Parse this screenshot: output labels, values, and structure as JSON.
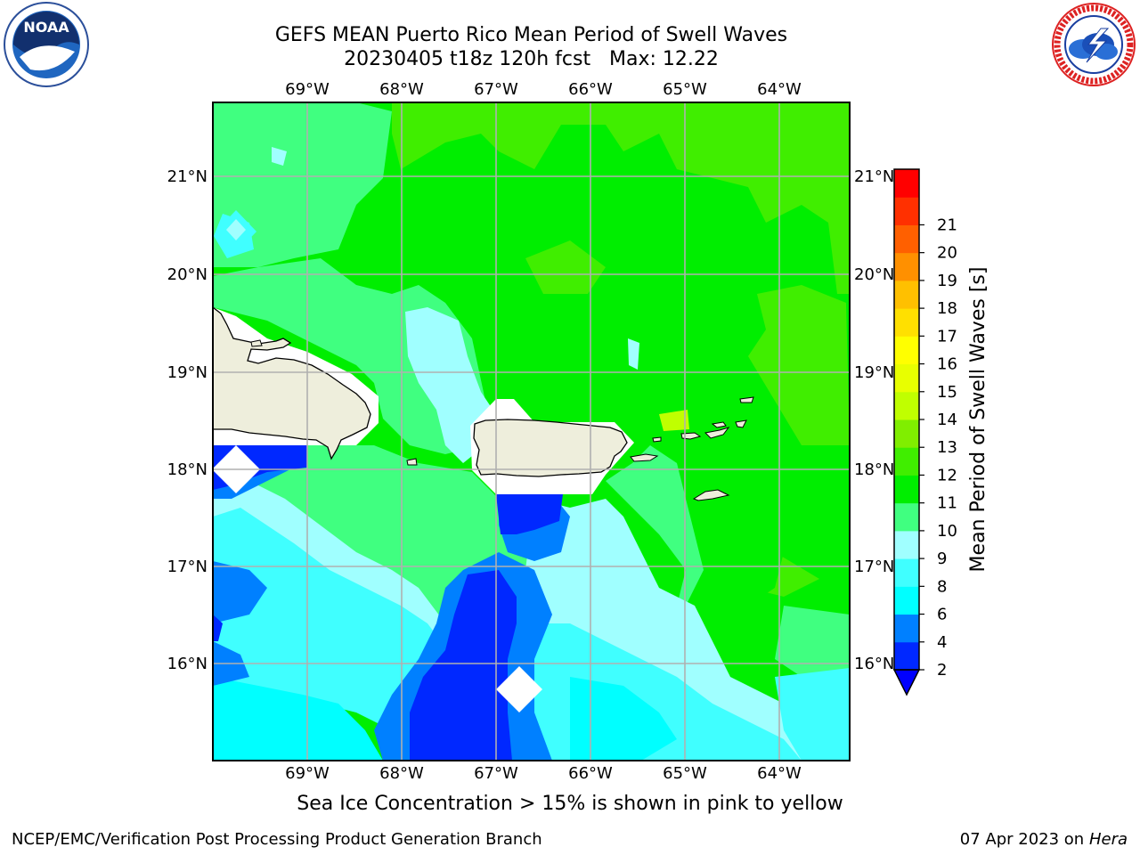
{
  "header": {
    "title_line1": "GEFS MEAN Puerto Rico Mean Period of Swell Waves",
    "title_line2": "20230405 t18z 120h fcst   Max: 12.22"
  },
  "map": {
    "longitude_ticks": [
      "69°W",
      "68°W",
      "67°W",
      "66°W",
      "65°W",
      "64°W"
    ],
    "latitude_ticks": [
      "21°N",
      "20°N",
      "19°N",
      "18°N",
      "17°N",
      "16°N"
    ],
    "lon_range": [
      -70,
      -63.25
    ],
    "lat_range": [
      15,
      21.75
    ],
    "land_color": "#eeeedc",
    "grid_color": "#b0b0b0"
  },
  "colorbar": {
    "label": "Mean Period of Swell Waves [s]",
    "tick_labels": [
      "2",
      "4",
      "6",
      "8",
      "9",
      "10",
      "11",
      "12",
      "13",
      "14",
      "15",
      "16",
      "17",
      "18",
      "19",
      "20",
      "21"
    ],
    "colors": [
      "#0028ff",
      "#0080ff",
      "#00ffff",
      "#40ffff",
      "#a0ffff",
      "#40ff80",
      "#00ee00",
      "#40ee00",
      "#80ee00",
      "#c0ff00",
      "#e8ff00",
      "#ffff00",
      "#ffe000",
      "#ffc000",
      "#ff9000",
      "#ff6000",
      "#ff3000",
      "#ff0000"
    ],
    "under_color": "#0000ff"
  },
  "footer": {
    "note": "Sea Ice Concentration > 15% is shown in pink to yellow",
    "org": "NCEP/EMC/Verification Post Processing Product Generation Branch",
    "date": "07 Apr 2023 on",
    "machine": "Hera"
  },
  "logos": {
    "left": "noaa-logo",
    "right": "nws-logo"
  }
}
